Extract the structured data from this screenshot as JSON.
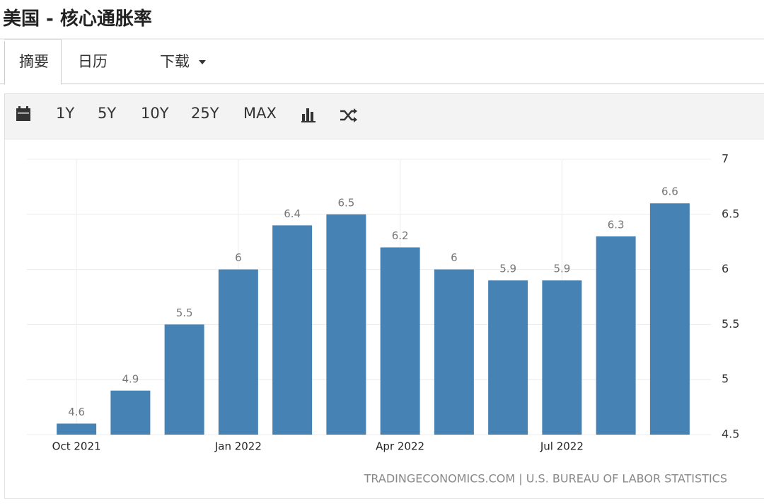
{
  "header": {
    "title": "美国 - 核心通胀率"
  },
  "tabs": [
    "摘要",
    "日历",
    "下载"
  ],
  "toolbar": [
    "1Y",
    "5Y",
    "10Y",
    "25Y",
    "MAX"
  ],
  "chart_data": {
    "type": "bar",
    "categories": [
      "Oct 2021",
      null,
      null,
      "Jan 2022",
      null,
      null,
      "Apr 2022",
      null,
      null,
      "Jul 2022",
      null,
      null
    ],
    "values": [
      4.6,
      4.9,
      5.5,
      6,
      6.4,
      6.5,
      6.2,
      6,
      5.9,
      5.9,
      6.3,
      6.6
    ],
    "color": "#4682b4",
    "ylim": [
      4.5,
      7
    ],
    "yticks": [
      4.5,
      5,
      5.5,
      6,
      6.5,
      7
    ],
    "grid": true,
    "source": "TRADINGECONOMICS.COM | U.S. BUREAU OF LABOR STATISTICS"
  }
}
